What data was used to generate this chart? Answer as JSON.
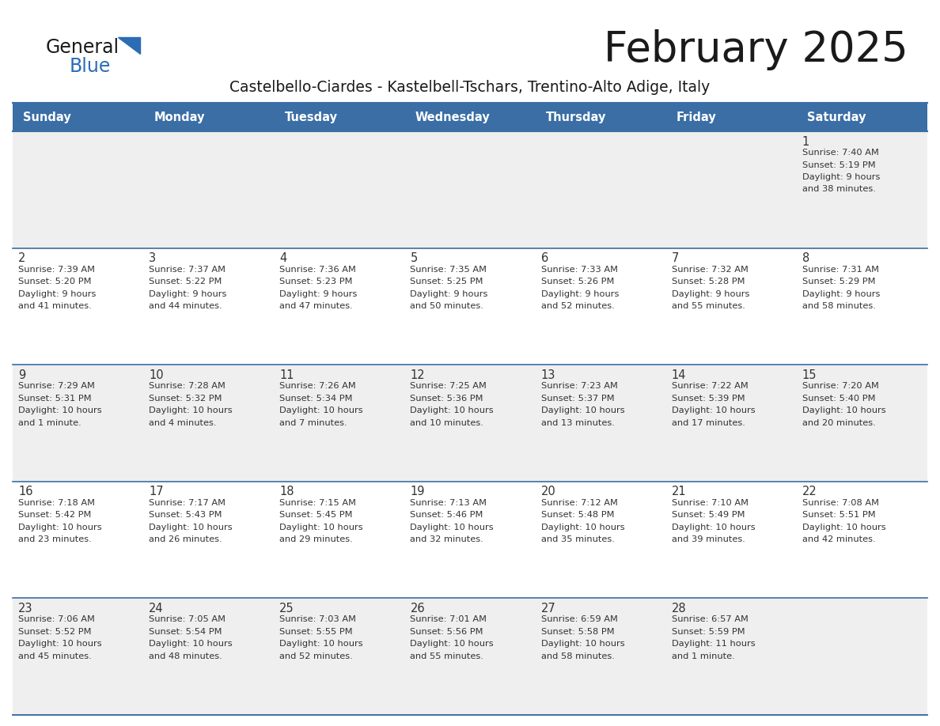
{
  "title": "February 2025",
  "subtitle": "Castelbello-Ciardes - Kastelbell-Tschars, Trentino-Alto Adige, Italy",
  "days_of_week": [
    "Sunday",
    "Monday",
    "Tuesday",
    "Wednesday",
    "Thursday",
    "Friday",
    "Saturday"
  ],
  "header_bg": "#3a6ea5",
  "header_text": "#ffffff",
  "row_bg_light": "#efefef",
  "row_bg_white": "#ffffff",
  "cell_border_color": "#3a6ea5",
  "day_number_color": "#333333",
  "info_text_color": "#333333",
  "title_color": "#1a1a1a",
  "subtitle_color": "#1a1a1a",
  "logo_general_color": "#1a1a1a",
  "logo_blue_color": "#2a6db5",
  "calendar_data": [
    [
      null,
      null,
      null,
      null,
      null,
      null,
      {
        "day": 1,
        "sunrise": "7:40 AM",
        "sunset": "5:19 PM",
        "daylight": "9 hours and 38 minutes."
      }
    ],
    [
      {
        "day": 2,
        "sunrise": "7:39 AM",
        "sunset": "5:20 PM",
        "daylight": "9 hours and 41 minutes."
      },
      {
        "day": 3,
        "sunrise": "7:37 AM",
        "sunset": "5:22 PM",
        "daylight": "9 hours and 44 minutes."
      },
      {
        "day": 4,
        "sunrise": "7:36 AM",
        "sunset": "5:23 PM",
        "daylight": "9 hours and 47 minutes."
      },
      {
        "day": 5,
        "sunrise": "7:35 AM",
        "sunset": "5:25 PM",
        "daylight": "9 hours and 50 minutes."
      },
      {
        "day": 6,
        "sunrise": "7:33 AM",
        "sunset": "5:26 PM",
        "daylight": "9 hours and 52 minutes."
      },
      {
        "day": 7,
        "sunrise": "7:32 AM",
        "sunset": "5:28 PM",
        "daylight": "9 hours and 55 minutes."
      },
      {
        "day": 8,
        "sunrise": "7:31 AM",
        "sunset": "5:29 PM",
        "daylight": "9 hours and 58 minutes."
      }
    ],
    [
      {
        "day": 9,
        "sunrise": "7:29 AM",
        "sunset": "5:31 PM",
        "daylight": "10 hours and 1 minute."
      },
      {
        "day": 10,
        "sunrise": "7:28 AM",
        "sunset": "5:32 PM",
        "daylight": "10 hours and 4 minutes."
      },
      {
        "day": 11,
        "sunrise": "7:26 AM",
        "sunset": "5:34 PM",
        "daylight": "10 hours and 7 minutes."
      },
      {
        "day": 12,
        "sunrise": "7:25 AM",
        "sunset": "5:36 PM",
        "daylight": "10 hours and 10 minutes."
      },
      {
        "day": 13,
        "sunrise": "7:23 AM",
        "sunset": "5:37 PM",
        "daylight": "10 hours and 13 minutes."
      },
      {
        "day": 14,
        "sunrise": "7:22 AM",
        "sunset": "5:39 PM",
        "daylight": "10 hours and 17 minutes."
      },
      {
        "day": 15,
        "sunrise": "7:20 AM",
        "sunset": "5:40 PM",
        "daylight": "10 hours and 20 minutes."
      }
    ],
    [
      {
        "day": 16,
        "sunrise": "7:18 AM",
        "sunset": "5:42 PM",
        "daylight": "10 hours and 23 minutes."
      },
      {
        "day": 17,
        "sunrise": "7:17 AM",
        "sunset": "5:43 PM",
        "daylight": "10 hours and 26 minutes."
      },
      {
        "day": 18,
        "sunrise": "7:15 AM",
        "sunset": "5:45 PM",
        "daylight": "10 hours and 29 minutes."
      },
      {
        "day": 19,
        "sunrise": "7:13 AM",
        "sunset": "5:46 PM",
        "daylight": "10 hours and 32 minutes."
      },
      {
        "day": 20,
        "sunrise": "7:12 AM",
        "sunset": "5:48 PM",
        "daylight": "10 hours and 35 minutes."
      },
      {
        "day": 21,
        "sunrise": "7:10 AM",
        "sunset": "5:49 PM",
        "daylight": "10 hours and 39 minutes."
      },
      {
        "day": 22,
        "sunrise": "7:08 AM",
        "sunset": "5:51 PM",
        "daylight": "10 hours and 42 minutes."
      }
    ],
    [
      {
        "day": 23,
        "sunrise": "7:06 AM",
        "sunset": "5:52 PM",
        "daylight": "10 hours and 45 minutes."
      },
      {
        "day": 24,
        "sunrise": "7:05 AM",
        "sunset": "5:54 PM",
        "daylight": "10 hours and 48 minutes."
      },
      {
        "day": 25,
        "sunrise": "7:03 AM",
        "sunset": "5:55 PM",
        "daylight": "10 hours and 52 minutes."
      },
      {
        "day": 26,
        "sunrise": "7:01 AM",
        "sunset": "5:56 PM",
        "daylight": "10 hours and 55 minutes."
      },
      {
        "day": 27,
        "sunrise": "6:59 AM",
        "sunset": "5:58 PM",
        "daylight": "10 hours and 58 minutes."
      },
      {
        "day": 28,
        "sunrise": "6:57 AM",
        "sunset": "5:59 PM",
        "daylight": "11 hours and 1 minute."
      },
      null
    ]
  ],
  "row_bg_sequence": [
    "light",
    "white",
    "light",
    "white",
    "light"
  ]
}
